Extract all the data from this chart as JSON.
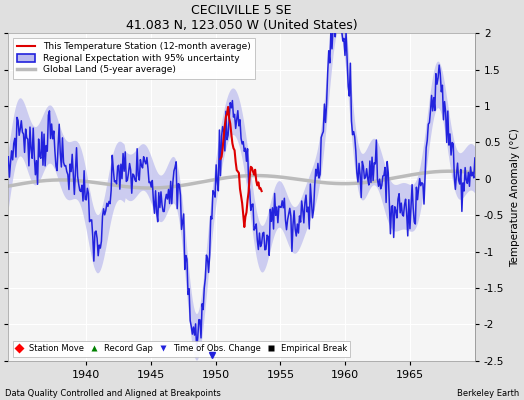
{
  "title": "CECILVILLE 5 SE",
  "subtitle": "41.083 N, 123.050 W (United States)",
  "xlabel_bottom": "Data Quality Controlled and Aligned at Breakpoints",
  "xlabel_right": "Berkeley Earth",
  "ylabel": "Temperature Anomaly (°C)",
  "xlim": [
    1934,
    1970
  ],
  "ylim": [
    -2.5,
    2.0
  ],
  "yticks": [
    -2.5,
    -2.0,
    -1.5,
    -1.0,
    -0.5,
    0.0,
    0.5,
    1.0,
    1.5,
    2.0
  ],
  "ytick_labels": [
    "-2.5",
    "-2",
    "-1.5",
    "-1",
    "-0.5",
    "0",
    "0.5",
    "1",
    "1.5",
    "2"
  ],
  "xticks": [
    1940,
    1945,
    1950,
    1955,
    1960,
    1965
  ],
  "bg_color": "#e0e0e0",
  "plot_bg_color": "#f5f5f5",
  "grid_color": "#ffffff",
  "uncertainty_color": "#bbbbee",
  "regional_color": "#2222dd",
  "station_color": "#dd0000",
  "global_color": "#bbbbbb",
  "obs_change_x": 1949.7,
  "obs_change_y": -2.42,
  "station_x_start": 1950.5,
  "station_x_end": 1953.5
}
